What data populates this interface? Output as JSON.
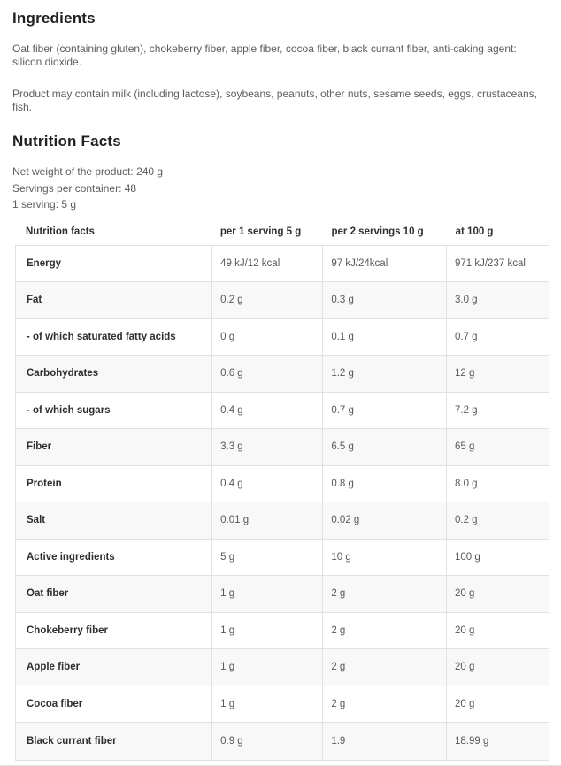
{
  "ingredients": {
    "title": "Ingredients",
    "composition": "Oat fiber (containing gluten), chokeberry fiber, apple fiber, cocoa fiber, black currant fiber, anti-caking agent: silicon dioxide.",
    "allergens": "Product may contain milk (including lactose), soybeans, peanuts, other nuts, sesame seeds, eggs, crustaceans, fish."
  },
  "nutrition": {
    "title": "Nutrition Facts",
    "meta": {
      "net_weight": "Net weight of the product: 240 g",
      "servings": "Servings per container: 48",
      "serving_size": "1 serving: 5 g"
    },
    "table": {
      "headers": [
        "Nutrition facts",
        "per 1 serving 5 g",
        "per 2 servings 10 g",
        "at 100 g"
      ],
      "rows": [
        {
          "label": "Energy",
          "per_serving": "49 kJ/12 kcal",
          "per_two_servings": "97 kJ/24kcal",
          "per_100g": "971 kJ/237 kcal"
        },
        {
          "label": "Fat",
          "per_serving": "0.2 g",
          "per_two_servings": "0.3 g",
          "per_100g": "3.0 g"
        },
        {
          "label": "- of which saturated fatty acids",
          "per_serving": "0 g",
          "per_two_servings": "0.1 g",
          "per_100g": "0.7 g"
        },
        {
          "label": "Carbohydrates",
          "per_serving": "0.6 g",
          "per_two_servings": "1.2 g",
          "per_100g": "12 g"
        },
        {
          "label": "- of which sugars",
          "per_serving": "0.4 g",
          "per_two_servings": "0.7 g",
          "per_100g": "7.2 g"
        },
        {
          "label": "Fiber",
          "per_serving": "3.3 g",
          "per_two_servings": "6.5 g",
          "per_100g": "65 g"
        },
        {
          "label": "Protein",
          "per_serving": "0.4 g",
          "per_two_servings": "0.8 g",
          "per_100g": "8.0 g"
        },
        {
          "label": "Salt",
          "per_serving": "0.01 g",
          "per_two_servings": "0.02 g",
          "per_100g": "0.2 g"
        },
        {
          "label": "Active ingredients",
          "per_serving": "5 g",
          "per_two_servings": "10 g",
          "per_100g": "100 g"
        },
        {
          "label": "Oat fiber",
          "per_serving": "1 g",
          "per_two_servings": "2 g",
          "per_100g": "20 g"
        },
        {
          "label": "Chokeberry fiber",
          "per_serving": "1 g",
          "per_two_servings": "2 g",
          "per_100g": "20 g"
        },
        {
          "label": "Apple fiber",
          "per_serving": "1 g",
          "per_two_servings": "2 g",
          "per_100g": "20 g"
        },
        {
          "label": "Cocoa fiber",
          "per_serving": "1 g",
          "per_two_servings": "2 g",
          "per_100g": "20 g"
        },
        {
          "label": "Black currant fiber",
          "per_serving": "0.9 g",
          "per_two_servings": "1.9",
          "per_100g": "18.99 g"
        }
      ]
    }
  },
  "colors": {
    "heading_text": "#212121",
    "body_text": "#5d5d5d",
    "label_text": "#2e2e2e",
    "table_border": "#e1e1e1",
    "row_alt_background": "#f8f8f8"
  }
}
